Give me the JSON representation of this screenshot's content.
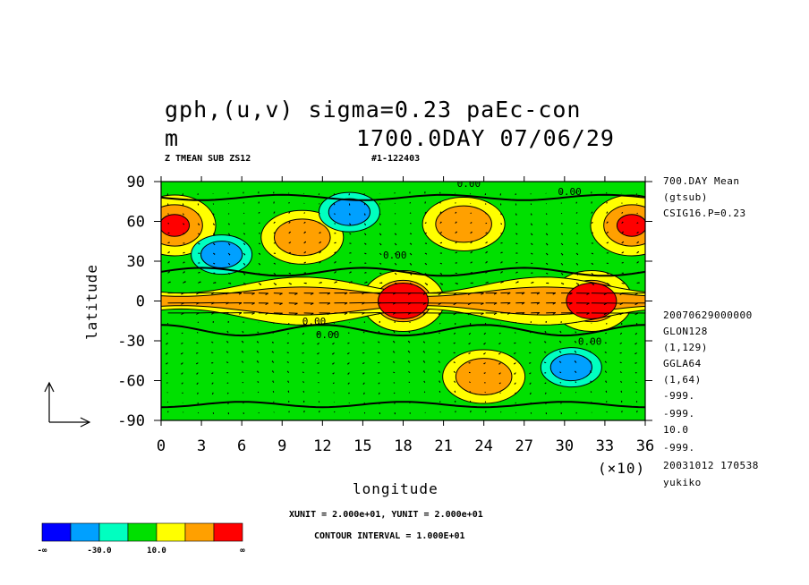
{
  "header": {
    "title_line1": "gph,(u,v) sigma=0.23  paEc-con",
    "title_line2_left": "m",
    "title_line2_right": "1700.0DAY 07/06/29",
    "subtitle_left": "Z TMEAN SUB ZS12",
    "subtitle_right": "#1-122403"
  },
  "right_meta": {
    "top": [
      "700.DAY Mean",
      "(gtsub)",
      "CSIG16.P=0.23"
    ],
    "bottom": [
      "20070629000000",
      "GLON128",
      "(1,129)",
      "GGLA64",
      "(1,64)",
      "-999.",
      "-999.",
      "10.0",
      "-999.",
      "20031012 170538",
      "yukiko"
    ]
  },
  "footer": {
    "units_text": "XUNIT = 2.000e+01, YUNIT = 2.000e+01",
    "contour_text": "CONTOUR INTERVAL = 1.000E+01"
  },
  "colorbar": {
    "colors": [
      "#0000ff",
      "#00a0ff",
      "#00ffc0",
      "#00e000",
      "#ffff00",
      "#ffa000",
      "#ff0000"
    ],
    "labels": [
      "-∞",
      "-30.0",
      "10.0",
      "∞"
    ]
  },
  "chart_data": {
    "type": "heatmap",
    "title": "gph,(u,v) sigma=0.23  paEc-con",
    "xlabel": "longitude",
    "ylabel": "latitude",
    "x_multiplier_label": "(×10)",
    "xlim": [
      0,
      36
    ],
    "ylim": [
      -90,
      90
    ],
    "x_ticks": [
      0,
      3,
      6,
      9,
      12,
      15,
      18,
      21,
      24,
      27,
      30,
      33,
      36
    ],
    "y_ticks": [
      90,
      60,
      30,
      0,
      -30,
      -60,
      -90
    ],
    "contour_labels": [
      "0.00",
      "0.00",
      "0.00",
      "0.00",
      "0.00",
      "0.00"
    ],
    "field_features": [
      {
        "kind": "max",
        "lon": 1,
        "lat": 57,
        "value_level": "high"
      },
      {
        "kind": "max",
        "lon": 10.5,
        "lat": 48,
        "value_level": "mid-high"
      },
      {
        "kind": "max",
        "lon": 22.5,
        "lat": 58,
        "value_level": "mid-high"
      },
      {
        "kind": "max",
        "lon": 35,
        "lat": 57,
        "value_level": "high"
      },
      {
        "kind": "max",
        "lon": 18,
        "lat": 0,
        "value_level": "high"
      },
      {
        "kind": "max",
        "lon": 32,
        "lat": 0,
        "value_level": "high"
      },
      {
        "kind": "max",
        "lon": 24,
        "lat": -57,
        "value_level": "mid-high"
      },
      {
        "kind": "min",
        "lon": 4.5,
        "lat": 35,
        "value_level": "low"
      },
      {
        "kind": "min",
        "lon": 14,
        "lat": 67,
        "value_level": "low"
      },
      {
        "kind": "min",
        "lon": 30.5,
        "lat": -50,
        "value_level": "low"
      }
    ]
  }
}
